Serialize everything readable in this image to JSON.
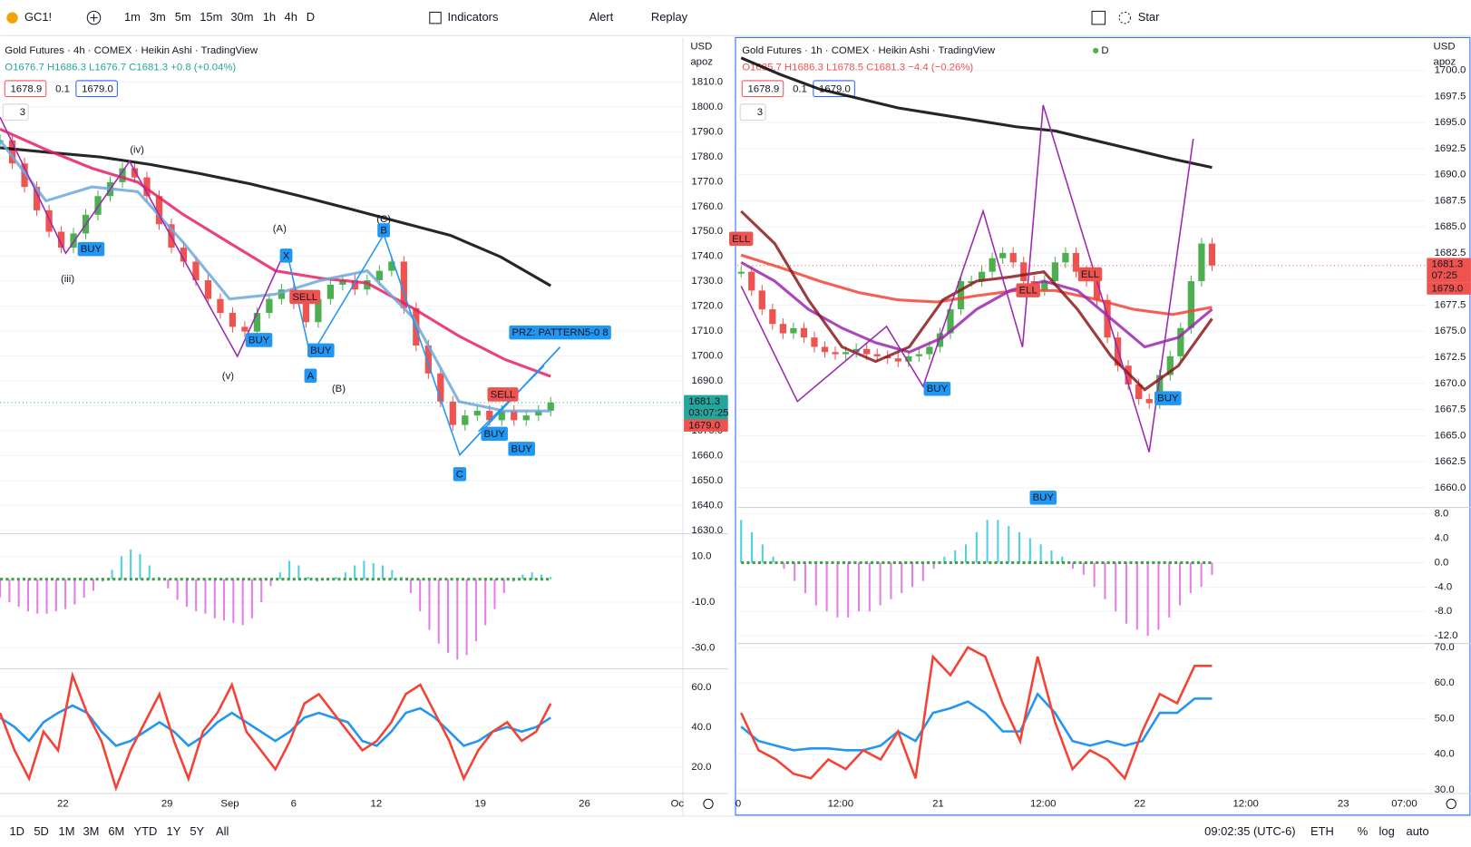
{
  "toolbar": {
    "symbol": "GC1!",
    "intervals": [
      "1m",
      "3m",
      "5m",
      "15m",
      "30m",
      "1h",
      "4h",
      "D"
    ],
    "indicators": "Indicators",
    "alert": "Alert",
    "replay": "Replay",
    "star": "Star"
  },
  "panes": [
    {
      "title": "Gold Futures · 4h · COMEX · Heikin Ashi · TradingView",
      "ohlc": [
        "O1676.7",
        "H1686.3",
        "L1676.7",
        "C1681.3",
        "+0.8 (+0.04%)"
      ],
      "ohlc_color": "#26a69a",
      "bid": "1678.9",
      "spread": "0.1",
      "ask": "1679.0",
      "collapse": "3",
      "currency": "USD",
      "scale_mode": "apoz",
      "price": {
        "ylim": [
          1629,
          1826
        ],
        "yticks": [
          {
            "value": 1810,
            "label": "1810.0"
          },
          {
            "value": 1800,
            "label": "1800.0"
          },
          {
            "value": 1790,
            "label": "1790.0"
          },
          {
            "value": 1780,
            "label": "1780.0"
          },
          {
            "value": 1770,
            "label": "1770.0"
          },
          {
            "value": 1760,
            "label": "1760.0"
          },
          {
            "value": 1750,
            "label": "1750.0"
          },
          {
            "value": 1740,
            "label": "1740.0"
          },
          {
            "value": 1730,
            "label": "1730.0"
          },
          {
            "value": 1720,
            "label": "1720.0"
          },
          {
            "value": 1710,
            "label": "1710.0"
          },
          {
            "value": 1700,
            "label": "1700.0"
          },
          {
            "value": 1690,
            "label": "1690.0"
          },
          {
            "value": 1680,
            "label": "1680.0"
          },
          {
            "value": 1670,
            "label": "1670.0"
          },
          {
            "value": 1660,
            "label": "1660.0"
          },
          {
            "value": 1650,
            "label": "1650.0"
          },
          {
            "value": 1640,
            "label": "1640.0"
          },
          {
            "value": 1630,
            "label": "1630.0"
          }
        ],
        "up_color": "#4caf50",
        "down_color": "#ef5350",
        "close": [
          1786.6,
          1777.3,
          1767.9,
          1758.5,
          1749.9,
          1743.5,
          1749.2,
          1756.7,
          1764.2,
          1769.8,
          1775.4,
          1771.7,
          1764.2,
          1752.9,
          1743.5,
          1737.9,
          1730.4,
          1722.9,
          1717.3,
          1711.7,
          1709.8,
          1717.3,
          1722.9,
          1726.7,
          1721.1,
          1713.6,
          1722.9,
          1728.6,
          1730.4,
          1726.7,
          1730.4,
          1734.2,
          1737.9,
          1719.2,
          1704.2,
          1693.0,
          1681.7,
          1672.3,
          1676.1,
          1678.0,
          1674.2,
          1678.0,
          1674.2,
          1676.1,
          1678.0,
          1681.3
        ],
        "lines": [
          {
            "color": "#000000",
            "values": [
              1783.6,
              1781.7,
              1779.9,
              1776.9,
              1773.2,
              1769.1,
              1764.2,
              1759.0,
              1753.7,
              1748.4,
              1739.8,
              1728.2
            ]
          },
          {
            "color": "#e91e63",
            "values": [
              1791.1,
              1782.9,
              1775.4,
              1769.8,
              1756.7,
              1745.4,
              1734.2,
              1731.2,
              1729.3,
              1719.2,
              1708.0,
              1698.6,
              1691.8
            ]
          },
          {
            "color": "#6fa8dc",
            "values": [
              1786.6,
              1762.3,
              1767.9,
              1766.0,
              1745.4,
              1722.9,
              1724.8,
              1730.4,
              1734.2,
              1715.4,
              1681.7,
              1677.9,
              1677.9
            ]
          }
        ],
        "tags": [
          {
            "value": 1681.3,
            "label": "1681.3"
          },
          "03:07:25",
          {
            "value": 1679.0,
            "label": "1679.0"
          }
        ],
        "tag_colors": [
          "#26a69a",
          "#ef5350"
        ]
      },
      "macd": {
        "ylim": [
          -38.6,
          19.4
        ],
        "yticks": [
          {
            "value": 10,
            "label": "10.0"
          },
          {
            "value": -10,
            "label": "-10.0"
          },
          {
            "value": -30,
            "label": "-30.0"
          }
        ],
        "up_color": "#4dd0e1",
        "down_color": "#e57ee8",
        "values": [
          -8,
          -10,
          -12,
          -14,
          -15,
          -15,
          -14,
          -13,
          -11,
          -8,
          -5,
          -1,
          4,
          10,
          13,
          11,
          6,
          1,
          -4,
          -9,
          -12,
          -14,
          -15,
          -17,
          -18,
          -19,
          -20,
          -17,
          -10,
          -3,
          3,
          8,
          6,
          1,
          -1,
          0,
          1,
          3,
          6,
          8,
          7,
          6,
          4,
          1,
          -6,
          -14,
          -22,
          -28,
          -32,
          -35,
          -33,
          -27,
          -20,
          -13,
          -6,
          -1,
          2,
          3,
          2,
          1
        ]
      },
      "rsi": {
        "ylim": [
          7.3,
          69.4
        ],
        "yticks": [
          {
            "value": 60,
            "label": "60.0"
          },
          {
            "value": 40,
            "label": "40.0"
          },
          {
            "value": 20,
            "label": "20.0"
          }
        ],
        "series": [
          {
            "color": "#2196f3",
            "values": [
              44.9,
              40.2,
              33.2,
              42.6,
              47.3,
              51.0,
              47.3,
              37.9,
              30.8,
              33.2,
              37.9,
              42.6,
              37.9,
              30.8,
              35.5,
              42.6,
              47.3,
              42.6,
              37.9,
              33.2,
              37.9,
              44.9,
              47.3,
              44.9,
              42.6,
              33.2,
              30.8,
              37.9,
              47.3,
              49.6,
              44.9,
              37.9,
              30.8,
              33.2,
              37.9,
              40.2,
              37.9,
              40.2,
              44.9
            ]
          },
          {
            "color": "#f44336",
            "values": [
              47.3,
              28.5,
              14.3,
              37.9,
              28.5,
              66.1,
              47.3,
              33.2,
              9.6,
              28.5,
              42.6,
              56.7,
              33.2,
              14.3,
              37.9,
              47.3,
              61.4,
              37.9,
              28.5,
              19.0,
              33.2,
              52.0,
              56.7,
              47.3,
              37.9,
              28.5,
              33.2,
              42.6,
              56.7,
              61.4,
              47.3,
              33.2,
              14.3,
              28.5,
              37.9,
              42.6,
              33.2,
              37.9,
              52.0
            ]
          }
        ]
      },
      "xlabels": [
        "22",
        "29",
        "Sep",
        "6",
        "12",
        "19",
        "26",
        "Oc"
      ],
      "annotations": [
        "(iii)",
        "(iv)",
        "(v)",
        "(A)",
        "(B)",
        "(C)",
        "X",
        "A",
        "B",
        "C",
        "BUY",
        "BUY",
        "BUY",
        "BUY",
        "SELL",
        "SELL",
        "BUY",
        "PRZ: PATTERN5-0 8"
      ]
    },
    {
      "title": "Gold Futures · 1h · COMEX · Heikin Ashi · TradingView",
      "badge": "D",
      "ohlc": [
        "O1685.7",
        "H1686.3",
        "L1678.5",
        "C1681.3",
        "−4.4 (−0.26%)"
      ],
      "ohlc_color": "#ef5350",
      "bid": "1678.9",
      "spread": "0.1",
      "ask": "1679.0",
      "collapse": "3",
      "currency": "USD",
      "scale_mode": "apoz",
      "price": {
        "ylim": [
          1658.2,
          1702.7
        ],
        "yticks": [
          {
            "value": 1700,
            "label": "1700.0"
          },
          {
            "value": 1697.5,
            "label": "1697.5"
          },
          {
            "value": 1695,
            "label": "1695.0"
          },
          {
            "value": 1692.5,
            "label": "1692.5"
          },
          {
            "value": 1690,
            "label": "1690.0"
          },
          {
            "value": 1687.5,
            "label": "1687.5"
          },
          {
            "value": 1685,
            "label": "1685.0"
          },
          {
            "value": 1682.5,
            "label": "1682.5"
          },
          {
            "value": 1680,
            "label": "1680.0"
          },
          {
            "value": 1677.5,
            "label": "1677.5"
          },
          {
            "value": 1675,
            "label": "1675.0"
          },
          {
            "value": 1672.5,
            "label": "1672.5"
          },
          {
            "value": 1670,
            "label": "1670.0"
          },
          {
            "value": 1667.5,
            "label": "1667.5"
          },
          {
            "value": 1665,
            "label": "1665.0"
          },
          {
            "value": 1662.5,
            "label": "1662.5"
          },
          {
            "value": 1660,
            "label": "1660.0"
          }
        ],
        "up_color": "#4caf50",
        "down_color": "#ef5350",
        "close": [
          1680.7,
          1678.9,
          1677.1,
          1675.7,
          1674.8,
          1675.3,
          1674.4,
          1673.5,
          1673.0,
          1672.8,
          1673.0,
          1673.3,
          1672.8,
          1672.6,
          1672.4,
          1672.1,
          1672.6,
          1672.8,
          1673.5,
          1674.8,
          1677.1,
          1679.8,
          1679.8,
          1680.7,
          1682.0,
          1682.5,
          1681.6,
          1679.8,
          1678.9,
          1679.8,
          1681.6,
          1682.5,
          1680.7,
          1679.8,
          1678.0,
          1674.4,
          1671.7,
          1669.9,
          1668.5,
          1668.1,
          1670.8,
          1672.6,
          1675.3,
          1679.8,
          1683.4,
          1681.3
        ],
        "lines": [
          {
            "color": "#000000",
            "values": [
              1701.2,
              1699.6,
              1698.2,
              1697.3,
              1696.4,
              1695.8,
              1695.2,
              1694.6,
              1694.2,
              1693.3,
              1692.4,
              1691.5,
              1690.7
            ]
          },
          {
            "color": "#f44336",
            "values": [
              1682.3,
              1681.1,
              1679.8,
              1678.7,
              1678.0,
              1677.8,
              1678.4,
              1678.9,
              1678.9,
              1678.1,
              1677.1,
              1676.6,
              1677.3
            ]
          },
          {
            "color": "#9c27b0",
            "values": [
              1681.6,
              1679.8,
              1677.1,
              1675.3,
              1673.9,
              1673.0,
              1674.4,
              1677.1,
              1678.9,
              1679.8,
              1678.9,
              1676.2,
              1673.5,
              1674.4,
              1677.1
            ]
          },
          {
            "color": "#8b1a1a",
            "values": [
              1686.5,
              1683.4,
              1678.0,
              1673.5,
              1672.1,
              1673.5,
              1678.0,
              1679.8,
              1680.2,
              1680.7,
              1677.1,
              1672.6,
              1669.4,
              1671.7,
              1676.2
            ]
          }
        ],
        "tags": [
          {
            "value": 1681.3,
            "label": "1681.3"
          },
          "07:25",
          {
            "value": 1679.0,
            "label": "1679.0"
          }
        ],
        "tag_colors": [
          "#ef5350",
          "#ef5350"
        ]
      },
      "macd": {
        "ylim": [
          -13.1,
          8.9
        ],
        "yticks": [
          {
            "value": 8,
            "label": "8.0"
          },
          {
            "value": 4,
            "label": "4.0"
          },
          {
            "value": 0,
            "label": "0.0"
          },
          {
            "value": -4,
            "label": "-4.0"
          },
          {
            "value": -8,
            "label": "-8.0"
          },
          {
            "value": -12,
            "label": "-12.0"
          }
        ],
        "up_color": "#4dd0e1",
        "down_color": "#e57ee8",
        "values": [
          7,
          5,
          3,
          1,
          -1,
          -3,
          -5,
          -7,
          -8,
          -9,
          -9,
          -8,
          -8,
          -7,
          -6,
          -5,
          -4,
          -3,
          -1,
          1,
          2,
          3,
          5,
          7,
          7,
          6,
          5,
          4,
          3,
          2,
          1,
          -1,
          -2,
          -4,
          -6,
          -8,
          -10,
          -11,
          -12,
          -11,
          -9,
          -7,
          -5,
          -4,
          -2
        ]
      },
      "rsi": {
        "ylim": [
          29.2,
          71.1
        ],
        "yticks": [
          {
            "value": 70,
            "label": "70.0"
          },
          {
            "value": 60,
            "label": "60.0"
          },
          {
            "value": 50,
            "label": "50.0"
          },
          {
            "value": 40,
            "label": "40.0"
          },
          {
            "value": 30,
            "label": "30.0"
          }
        ],
        "series": [
          {
            "color": "#2196f3",
            "values": [
              47.7,
              43.7,
              42.4,
              41.1,
              41.6,
              41.6,
              41.1,
              41.1,
              42.4,
              46.4,
              43.7,
              51.6,
              52.9,
              54.8,
              51.6,
              46.4,
              46.4,
              56.9,
              51.6,
              43.7,
              42.4,
              43.7,
              42.4,
              43.7,
              51.6,
              51.6,
              55.6,
              55.6
            ]
          },
          {
            "color": "#f44336",
            "values": [
              51.6,
              41.1,
              38.5,
              34.5,
              33.2,
              38.5,
              35.8,
              41.1,
              38.5,
              46.4,
              33.2,
              67.4,
              62.2,
              70.0,
              67.4,
              54.3,
              43.7,
              67.4,
              49.0,
              35.8,
              41.1,
              38.5,
              33.2,
              46.4,
              56.9,
              54.3,
              64.8,
              64.8
            ]
          }
        ]
      },
      "xlabels": [
        "0",
        "12:00",
        "21",
        "12:00",
        "22",
        "12:00",
        "23",
        "07:00"
      ],
      "annotations": [
        "ELL",
        "ELL",
        "ELL",
        "BUY",
        "BUY",
        "BUY"
      ]
    }
  ],
  "bottom": {
    "ranges": [
      "1D",
      "5D",
      "1M",
      "3M",
      "6M",
      "YTD",
      "1Y",
      "5Y",
      "All"
    ],
    "time": "09:02:35 (UTC-6)",
    "session": "ETH",
    "percent": "%",
    "log": "log",
    "auto": "auto"
  }
}
